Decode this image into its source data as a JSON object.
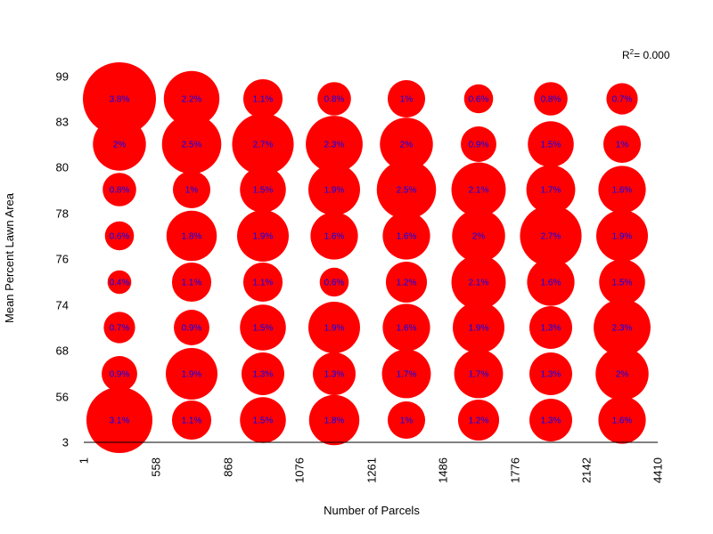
{
  "chart_data": {
    "type": "scatter",
    "title": "",
    "xlabel": "Number of Parcels",
    "ylabel": "Mean Percent Lawn Area",
    "x_ticks": [
      "1",
      "558",
      "868",
      "1076",
      "1261",
      "1486",
      "1776",
      "2142",
      "4410"
    ],
    "y_ticks": [
      "3",
      "56",
      "68",
      "74",
      "76",
      "78",
      "80",
      "83",
      "99"
    ],
    "r_squared": {
      "label": "R",
      "superscript": "2",
      "value": "= 0.000"
    },
    "cells": [
      {
        "xi": 0,
        "yi": 7,
        "percent": 3.8,
        "label": "3.8%"
      },
      {
        "xi": 1,
        "yi": 7,
        "percent": 2.2,
        "label": "2.2%"
      },
      {
        "xi": 2,
        "yi": 7,
        "percent": 1.1,
        "label": "1.1%"
      },
      {
        "xi": 3,
        "yi": 7,
        "percent": 0.8,
        "label": "0.8%"
      },
      {
        "xi": 4,
        "yi": 7,
        "percent": 1.0,
        "label": "1%"
      },
      {
        "xi": 5,
        "yi": 7,
        "percent": 0.6,
        "label": "0.6%"
      },
      {
        "xi": 6,
        "yi": 7,
        "percent": 0.8,
        "label": "0.8%"
      },
      {
        "xi": 7,
        "yi": 7,
        "percent": 0.7,
        "label": "0.7%"
      },
      {
        "xi": 0,
        "yi": 6,
        "percent": 2.0,
        "label": "2%"
      },
      {
        "xi": 1,
        "yi": 6,
        "percent": 2.5,
        "label": "2.5%"
      },
      {
        "xi": 2,
        "yi": 6,
        "percent": 2.7,
        "label": "2.7%"
      },
      {
        "xi": 3,
        "yi": 6,
        "percent": 2.3,
        "label": "2.3%"
      },
      {
        "xi": 4,
        "yi": 6,
        "percent": 2.0,
        "label": "2%"
      },
      {
        "xi": 5,
        "yi": 6,
        "percent": 0.9,
        "label": "0.9%"
      },
      {
        "xi": 6,
        "yi": 6,
        "percent": 1.5,
        "label": "1.5%"
      },
      {
        "xi": 7,
        "yi": 6,
        "percent": 1.0,
        "label": "1%"
      },
      {
        "xi": 0,
        "yi": 5,
        "percent": 0.8,
        "label": "0.8%"
      },
      {
        "xi": 1,
        "yi": 5,
        "percent": 1.0,
        "label": "1%"
      },
      {
        "xi": 2,
        "yi": 5,
        "percent": 1.5,
        "label": "1.5%"
      },
      {
        "xi": 3,
        "yi": 5,
        "percent": 1.9,
        "label": "1.9%"
      },
      {
        "xi": 4,
        "yi": 5,
        "percent": 2.5,
        "label": "2.5%"
      },
      {
        "xi": 5,
        "yi": 5,
        "percent": 2.1,
        "label": "2.1%"
      },
      {
        "xi": 6,
        "yi": 5,
        "percent": 1.7,
        "label": "1.7%"
      },
      {
        "xi": 7,
        "yi": 5,
        "percent": 1.6,
        "label": "1.6%"
      },
      {
        "xi": 0,
        "yi": 4,
        "percent": 0.6,
        "label": "0.6%"
      },
      {
        "xi": 1,
        "yi": 4,
        "percent": 1.8,
        "label": "1.8%"
      },
      {
        "xi": 2,
        "yi": 4,
        "percent": 1.9,
        "label": "1.9%"
      },
      {
        "xi": 3,
        "yi": 4,
        "percent": 1.6,
        "label": "1.6%"
      },
      {
        "xi": 4,
        "yi": 4,
        "percent": 1.6,
        "label": "1.6%"
      },
      {
        "xi": 5,
        "yi": 4,
        "percent": 2.0,
        "label": "2%"
      },
      {
        "xi": 6,
        "yi": 4,
        "percent": 2.7,
        "label": "2.7%"
      },
      {
        "xi": 7,
        "yi": 4,
        "percent": 1.9,
        "label": "1.9%"
      },
      {
        "xi": 0,
        "yi": 3,
        "percent": 0.4,
        "label": "0.4%"
      },
      {
        "xi": 1,
        "yi": 3,
        "percent": 1.1,
        "label": "1.1%"
      },
      {
        "xi": 2,
        "yi": 3,
        "percent": 1.1,
        "label": "1.1%"
      },
      {
        "xi": 3,
        "yi": 3,
        "percent": 0.6,
        "label": "0.6%"
      },
      {
        "xi": 4,
        "yi": 3,
        "percent": 1.2,
        "label": "1.2%"
      },
      {
        "xi": 5,
        "yi": 3,
        "percent": 2.1,
        "label": "2.1%"
      },
      {
        "xi": 6,
        "yi": 3,
        "percent": 1.6,
        "label": "1.6%"
      },
      {
        "xi": 7,
        "yi": 3,
        "percent": 1.5,
        "label": "1.5%"
      },
      {
        "xi": 0,
        "yi": 2,
        "percent": 0.7,
        "label": "0.7%"
      },
      {
        "xi": 1,
        "yi": 2,
        "percent": 0.9,
        "label": "0.9%"
      },
      {
        "xi": 2,
        "yi": 2,
        "percent": 1.5,
        "label": "1.5%"
      },
      {
        "xi": 3,
        "yi": 2,
        "percent": 1.9,
        "label": "1.9%"
      },
      {
        "xi": 4,
        "yi": 2,
        "percent": 1.6,
        "label": "1.6%"
      },
      {
        "xi": 5,
        "yi": 2,
        "percent": 1.9,
        "label": "1.9%"
      },
      {
        "xi": 6,
        "yi": 2,
        "percent": 1.3,
        "label": "1.3%"
      },
      {
        "xi": 7,
        "yi": 2,
        "percent": 2.3,
        "label": "2.3%"
      },
      {
        "xi": 0,
        "yi": 1,
        "percent": 0.9,
        "label": "0.9%"
      },
      {
        "xi": 1,
        "yi": 1,
        "percent": 1.9,
        "label": "1.9%"
      },
      {
        "xi": 2,
        "yi": 1,
        "percent": 1.3,
        "label": "1.3%"
      },
      {
        "xi": 3,
        "yi": 1,
        "percent": 1.3,
        "label": "1.3%"
      },
      {
        "xi": 4,
        "yi": 1,
        "percent": 1.7,
        "label": "1.7%"
      },
      {
        "xi": 5,
        "yi": 1,
        "percent": 1.7,
        "label": "1.7%"
      },
      {
        "xi": 6,
        "yi": 1,
        "percent": 1.3,
        "label": "1.3%"
      },
      {
        "xi": 7,
        "yi": 1,
        "percent": 2.0,
        "label": "2%"
      },
      {
        "xi": 0,
        "yi": 0,
        "percent": 3.1,
        "label": "3.1%"
      },
      {
        "xi": 1,
        "yi": 0,
        "percent": 1.1,
        "label": "1.1%"
      },
      {
        "xi": 2,
        "yi": 0,
        "percent": 1.5,
        "label": "1.5%"
      },
      {
        "xi": 3,
        "yi": 0,
        "percent": 1.8,
        "label": "1.8%"
      },
      {
        "xi": 4,
        "yi": 0,
        "percent": 1.0,
        "label": "1%"
      },
      {
        "xi": 5,
        "yi": 0,
        "percent": 1.2,
        "label": "1.2%"
      },
      {
        "xi": 6,
        "yi": 0,
        "percent": 1.3,
        "label": "1.3%"
      },
      {
        "xi": 7,
        "yi": 0,
        "percent": 1.6,
        "label": "1.6%"
      }
    ],
    "colors": {
      "bubble": "#ff0000",
      "label": "#0000ff",
      "axis": "#000000"
    }
  }
}
